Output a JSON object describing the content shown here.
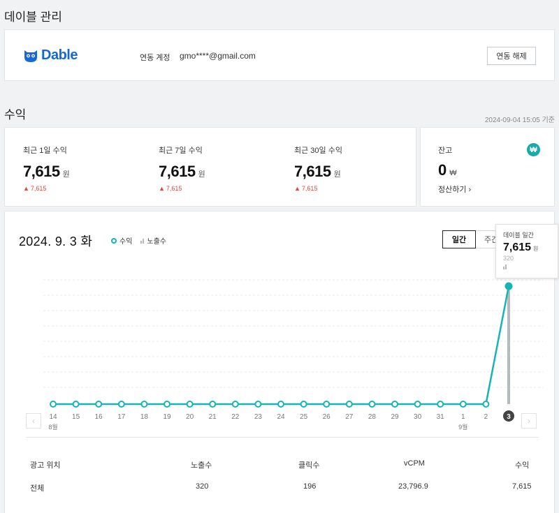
{
  "page": {
    "title": "데이블 관리",
    "section_title": "수익",
    "timestamp": "2024-09-04 15:05 기준"
  },
  "dable": {
    "logo_text": "Dable",
    "account_label": "연동 계정",
    "account_email": "gmo****@gmail.com",
    "disconnect_label": "연동 해제"
  },
  "earnings": [
    {
      "label": "최근 1일 수익",
      "value": "7,615",
      "unit": "원",
      "delta": "7,615"
    },
    {
      "label": "최근 7일 수익",
      "value": "7,615",
      "unit": "원",
      "delta": "7,615"
    },
    {
      "label": "최근 30일 수익",
      "value": "7,615",
      "unit": "원",
      "delta": "7,615"
    }
  ],
  "balance": {
    "label": "잔고",
    "value": "0",
    "unit": "₩",
    "icon": "won-icon",
    "settle_label": "정산하기 ›"
  },
  "chart_header": {
    "date": "2024. 9. 3 화",
    "legend_revenue": "수익",
    "legend_impressions": "노출수",
    "tab_daily": "일간",
    "tab_weekly": "주간"
  },
  "tooltip": {
    "title": "데이블 일간",
    "value": "7,615",
    "unit": "원",
    "sub": "320"
  },
  "colors": {
    "revenue_line": "#16b4b4",
    "impression_bar": "#b5bac1",
    "accent_brand": "#1768d6",
    "delta_red": "#e0463a"
  },
  "chart_data": {
    "type": "line",
    "x": [
      "14",
      "15",
      "16",
      "17",
      "18",
      "19",
      "20",
      "21",
      "22",
      "23",
      "24",
      "25",
      "26",
      "27",
      "28",
      "29",
      "30",
      "31",
      "1",
      "2",
      "3"
    ],
    "month_labels": [
      {
        "at": "14",
        "text": "8월"
      },
      {
        "at": "1",
        "text": "9월"
      }
    ],
    "selected": "3",
    "series": [
      {
        "name": "수익",
        "type": "line",
        "values": [
          0,
          0,
          0,
          0,
          0,
          0,
          0,
          0,
          0,
          0,
          0,
          0,
          0,
          0,
          0,
          0,
          0,
          0,
          0,
          0,
          7615
        ]
      },
      {
        "name": "노출수",
        "type": "bar",
        "values": [
          0,
          0,
          0,
          0,
          0,
          0,
          0,
          0,
          0,
          0,
          0,
          0,
          0,
          0,
          0,
          0,
          0,
          0,
          0,
          0,
          320
        ]
      }
    ],
    "grid": true
  },
  "table": {
    "headers": [
      "광고 위치",
      "노출수",
      "클릭수",
      "vCPM",
      "수익"
    ],
    "rows": [
      [
        "전체",
        "320",
        "196",
        "23,796.9",
        "7,615"
      ]
    ]
  }
}
